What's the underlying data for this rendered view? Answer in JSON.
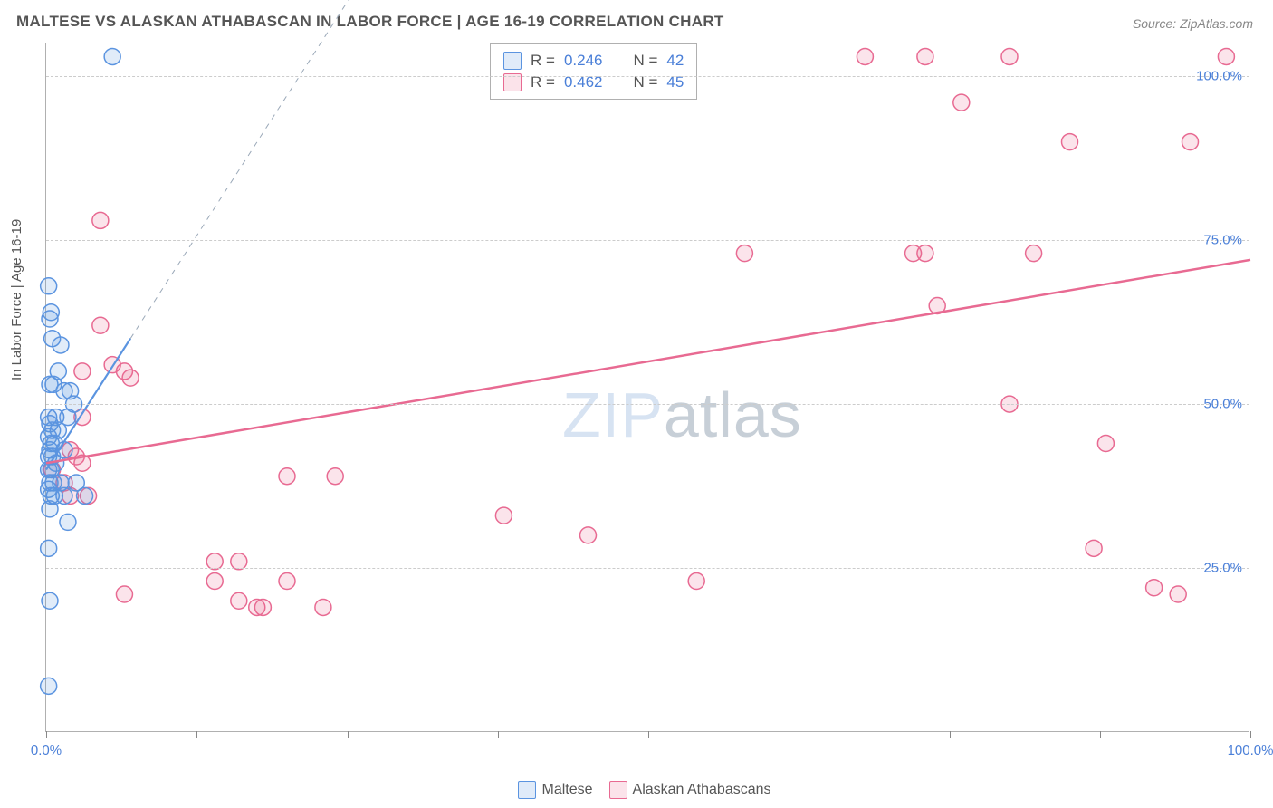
{
  "title": "MALTESE VS ALASKAN ATHABASCAN IN LABOR FORCE | AGE 16-19 CORRELATION CHART",
  "source": "Source: ZipAtlas.com",
  "y_axis_label": "In Labor Force | Age 16-19",
  "watermark_a": "ZIP",
  "watermark_b": "atlas",
  "chart": {
    "type": "scatter",
    "xlim": [
      0,
      100
    ],
    "ylim": [
      0,
      105
    ],
    "x_ticks": [
      0,
      12.5,
      25,
      37.5,
      50,
      62.5,
      75,
      87.5,
      100
    ],
    "x_tick_labels": {
      "0": "0.0%",
      "100": "100.0%"
    },
    "y_gridlines": [
      25,
      50,
      75,
      100
    ],
    "y_tick_labels": {
      "25": "25.0%",
      "50": "50.0%",
      "75": "75.0%",
      "100": "100.0%"
    },
    "background_color": "#ffffff",
    "grid_color": "#cccccc",
    "marker_radius": 9,
    "marker_stroke_width": 1.5,
    "marker_fill_opacity": 0.18,
    "series": [
      {
        "name": "Maltese",
        "color": "#5b94e0",
        "fill": "#5b94e0",
        "R": "0.246",
        "N": "42",
        "trend": {
          "x1": 0,
          "y1": 40,
          "x2": 7,
          "y2": 60,
          "dash_to_x": 34,
          "dash_to_y": 137,
          "width": 2.2
        },
        "points": [
          [
            0.2,
            68
          ],
          [
            0.4,
            64
          ],
          [
            0.3,
            63
          ],
          [
            0.5,
            60
          ],
          [
            1.2,
            59
          ],
          [
            1.0,
            55
          ],
          [
            0.3,
            53
          ],
          [
            0.6,
            53
          ],
          [
            1.5,
            52
          ],
          [
            2.0,
            52
          ],
          [
            2.3,
            50
          ],
          [
            0.2,
            48
          ],
          [
            0.8,
            48
          ],
          [
            1.8,
            48
          ],
          [
            0.3,
            47
          ],
          [
            0.5,
            46
          ],
          [
            1.0,
            46
          ],
          [
            0.2,
            45
          ],
          [
            0.4,
            44
          ],
          [
            0.7,
            44
          ],
          [
            0.3,
            43
          ],
          [
            1.5,
            43
          ],
          [
            0.2,
            42
          ],
          [
            0.5,
            42
          ],
          [
            0.8,
            41
          ],
          [
            0.2,
            40
          ],
          [
            0.4,
            40
          ],
          [
            0.3,
            38
          ],
          [
            0.6,
            38
          ],
          [
            1.2,
            38
          ],
          [
            2.5,
            38
          ],
          [
            0.2,
            37
          ],
          [
            0.4,
            36
          ],
          [
            0.7,
            36
          ],
          [
            1.5,
            36
          ],
          [
            3.2,
            36
          ],
          [
            0.3,
            34
          ],
          [
            1.8,
            32
          ],
          [
            0.2,
            28
          ],
          [
            0.3,
            20
          ],
          [
            0.2,
            7
          ],
          [
            5.5,
            103
          ]
        ]
      },
      {
        "name": "Alaskan Athabascans",
        "color": "#e86a92",
        "fill": "#e86a92",
        "R": "0.462",
        "N": "45",
        "trend": {
          "x1": 0,
          "y1": 41,
          "x2": 100,
          "y2": 72,
          "width": 2.5
        },
        "points": [
          [
            68,
            103
          ],
          [
            73,
            103
          ],
          [
            80,
            103
          ],
          [
            98,
            103
          ],
          [
            76,
            96
          ],
          [
            85,
            90
          ],
          [
            95,
            90
          ],
          [
            4.5,
            78
          ],
          [
            58,
            73
          ],
          [
            72,
            73
          ],
          [
            73,
            73
          ],
          [
            82,
            73
          ],
          [
            74,
            65
          ],
          [
            4.5,
            62
          ],
          [
            3.0,
            55
          ],
          [
            5.5,
            56
          ],
          [
            6.5,
            55
          ],
          [
            7.0,
            54
          ],
          [
            80,
            50
          ],
          [
            3.0,
            48
          ],
          [
            88,
            44
          ],
          [
            2.0,
            43
          ],
          [
            2.5,
            42
          ],
          [
            3.0,
            41
          ],
          [
            0.5,
            40
          ],
          [
            20,
            39
          ],
          [
            24,
            39
          ],
          [
            1.5,
            38
          ],
          [
            2.0,
            36
          ],
          [
            3.5,
            36
          ],
          [
            38,
            33
          ],
          [
            45,
            30
          ],
          [
            87,
            28
          ],
          [
            14,
            26
          ],
          [
            16,
            26
          ],
          [
            14,
            23
          ],
          [
            54,
            23
          ],
          [
            92,
            22
          ],
          [
            94,
            21
          ],
          [
            16,
            20
          ],
          [
            17.5,
            19
          ],
          [
            18,
            19
          ],
          [
            6.5,
            21
          ],
          [
            20,
            23
          ],
          [
            23,
            19
          ]
        ]
      }
    ]
  },
  "colors": {
    "title": "#555555",
    "axis_text": "#4a7fd8",
    "box_border": "#b0b0b0"
  }
}
